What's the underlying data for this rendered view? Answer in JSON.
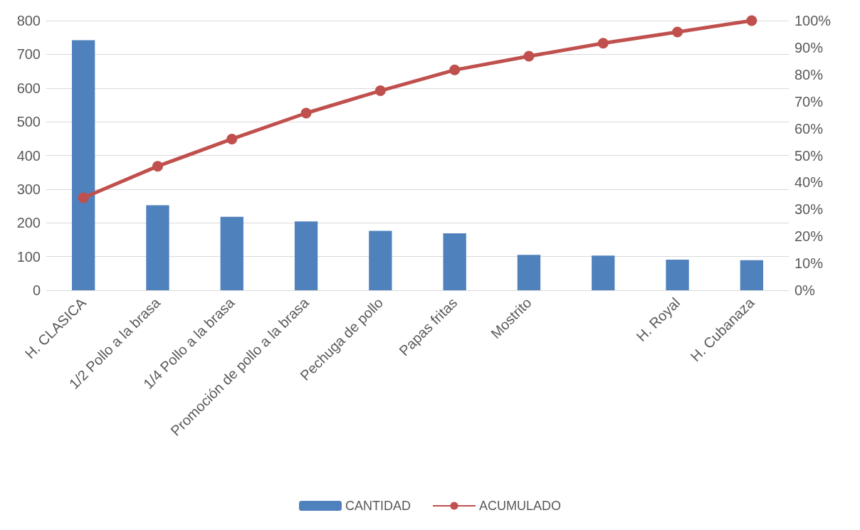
{
  "chart_data": {
    "type": "bar",
    "categories": [
      "H. CLASICA",
      "1/2 Pollo a la brasa",
      "1/4 Pollo a la brasa",
      "Promoción de pollo a la brasa",
      "Pechuga de pollo",
      "Papas fritas",
      "Mostrito",
      null,
      "H. Royal",
      "H. Cubanaza"
    ],
    "series": [
      {
        "name": "CANTIDAD",
        "color": "#4f81bd",
        "values": [
          742,
          252,
          218,
          204,
          176,
          169,
          105,
          103,
          91,
          89
        ]
      },
      {
        "name": "ACUMULADO",
        "type": "line",
        "axis": "y2",
        "color": "#c0504d",
        "values": [
          34.3,
          46.0,
          56.1,
          65.7,
          74.0,
          81.7,
          86.8,
          91.6,
          95.8,
          100
        ]
      }
    ],
    "ylim": [
      0,
      800
    ],
    "yticks": [
      0,
      100,
      200,
      300,
      400,
      500,
      600,
      700,
      800
    ],
    "y2lim": [
      0,
      100
    ],
    "y2ticks": [
      {
        "value": 0,
        "label": "0%"
      },
      {
        "value": 10,
        "label": "10%"
      },
      {
        "value": 20,
        "label": "20%"
      },
      {
        "value": 30,
        "label": "30%"
      },
      {
        "value": 40,
        "label": "40%"
      },
      {
        "value": 50,
        "label": "50%"
      },
      {
        "value": 60,
        "label": "60%"
      },
      {
        "value": 70,
        "label": "70%"
      },
      {
        "value": 80,
        "label": "80%"
      },
      {
        "value": 90,
        "label": "90%"
      },
      {
        "value": 100,
        "label": "100%"
      }
    ],
    "grid": "y",
    "legend": "bottom",
    "marker": "circle",
    "line_style": "solid"
  }
}
